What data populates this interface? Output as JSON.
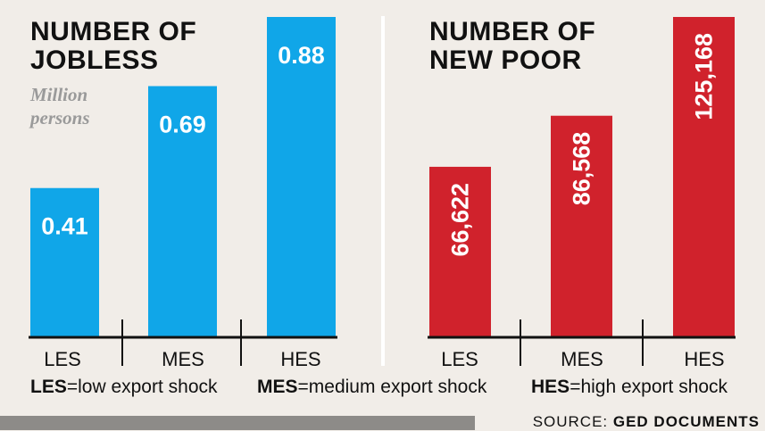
{
  "chart_data": [
    {
      "type": "bar",
      "title": "NUMBER OF\nJOBLESS",
      "subtitle": "Million\npersons",
      "categories": [
        "LES",
        "MES",
        "HES"
      ],
      "values": [
        0.41,
        0.69,
        0.88
      ],
      "value_labels": [
        "0.41",
        "0.69",
        "0.88"
      ],
      "ylim": [
        0,
        0.88
      ],
      "color": "#10a6e8"
    },
    {
      "type": "bar",
      "title": "NUMBER OF\nNEW POOR",
      "categories": [
        "LES",
        "MES",
        "HES"
      ],
      "values": [
        66622,
        86568,
        125168
      ],
      "value_labels": [
        "66,622",
        "86,568",
        "125,168"
      ],
      "ylim": [
        0,
        125168
      ],
      "color": "#d0222c"
    }
  ],
  "legend": [
    {
      "abbr": "LES",
      "text": "=low export shock"
    },
    {
      "abbr": "MES",
      "text": "=medium export shock"
    },
    {
      "abbr": "HES",
      "text": "=high export shock"
    }
  ],
  "source": {
    "prefix": "SOURCE: ",
    "name": "GED DOCUMENTS"
  },
  "colors": {
    "background": "#f1ede8",
    "axis": "#111111",
    "value_text": "#ffffff"
  }
}
